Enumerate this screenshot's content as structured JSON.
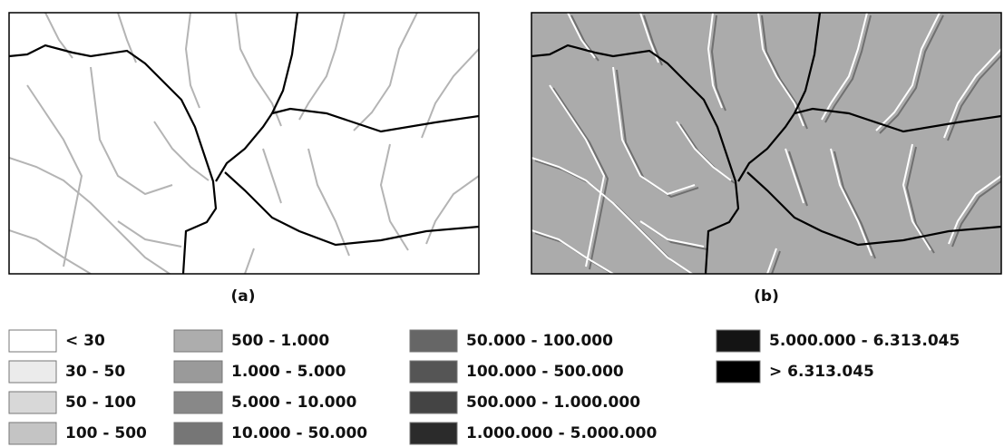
{
  "panels": [
    {
      "label": "(a)"
    },
    {
      "label": "(b)"
    }
  ],
  "legend": [
    {
      "label": "< 30",
      "color": "#ffffff"
    },
    {
      "label": "30 - 50",
      "color": "#ebebeb"
    },
    {
      "label": "50 - 100",
      "color": "#d8d8d8"
    },
    {
      "label": "100 - 500",
      "color": "#c4c4c4"
    },
    {
      "label": "500 - 1.000",
      "color": "#adadad"
    },
    {
      "label": "1.000 - 5.000",
      "color": "#9a9a9a"
    },
    {
      "label": "5.000 - 10.000",
      "color": "#888888"
    },
    {
      "label": "10.000 - 50.000",
      "color": "#767676"
    },
    {
      "label": "50.000 - 100.000",
      "color": "#666666"
    },
    {
      "label": "100.000 - 500.000",
      "color": "#555555"
    },
    {
      "label": "500.000 - 1.000.000",
      "color": "#444444"
    },
    {
      "label": "1.000.000 - 5.000.000",
      "color": "#2b2b2b"
    },
    {
      "label": "5.000.000 - 6.313.045",
      "color": "#141414"
    },
    {
      "label": "> 6.313.045",
      "color": "#000000"
    }
  ]
}
